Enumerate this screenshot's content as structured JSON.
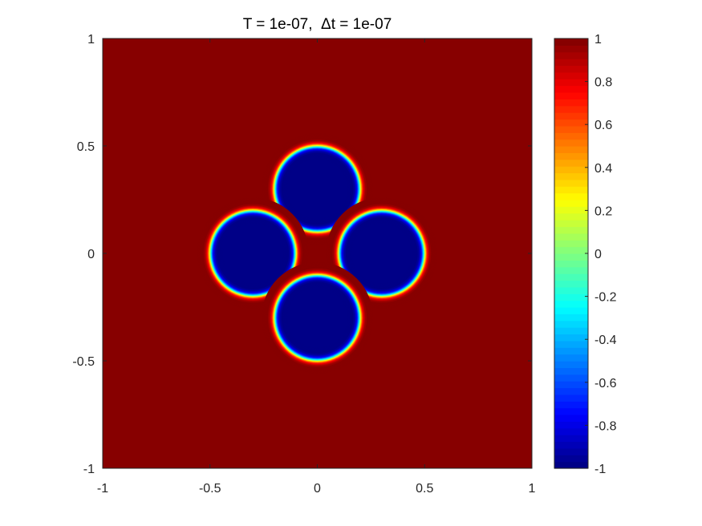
{
  "chart_data": {
    "type": "heatmap",
    "title": "T = 1e-07,  Δt = 1e-07",
    "xlabel": "",
    "ylabel": "",
    "xlim": [
      -1,
      1
    ],
    "ylim": [
      -1,
      1
    ],
    "x_ticks": [
      -1,
      -0.5,
      0,
      0.5,
      1
    ],
    "x_tick_labels": [
      "-1",
      "-0.5",
      "0",
      "0.5",
      "1"
    ],
    "y_ticks": [
      -1,
      -0.5,
      0,
      0.5,
      1
    ],
    "y_tick_labels": [
      "-1",
      "-0.5",
      "0",
      "0.5",
      "1"
    ],
    "grid": false,
    "colormap": "jet",
    "colorbar": {
      "range": [
        -1,
        1
      ],
      "ticks": [
        -1,
        -0.8,
        -0.6,
        -0.4,
        -0.2,
        0,
        0.2,
        0.4,
        0.6,
        0.8,
        1
      ],
      "tick_labels": [
        "-1",
        "-0.8",
        "-0.6",
        "-0.4",
        "-0.2",
        "0",
        "0.2",
        "0.4",
        "0.6",
        "0.8",
        "1"
      ],
      "placement": "right"
    },
    "background_value": 1,
    "circles": [
      {
        "cx": 0,
        "cy": 0.3,
        "r": 0.2,
        "value": -1
      },
      {
        "cx": -0.3,
        "cy": 0,
        "r": 0.2,
        "value": -1
      },
      {
        "cx": 0.3,
        "cy": 0,
        "r": 0.2,
        "value": -1
      },
      {
        "cx": 0,
        "cy": -0.3,
        "r": 0.2,
        "value": -1
      }
    ],
    "interface_width": 0.015
  }
}
